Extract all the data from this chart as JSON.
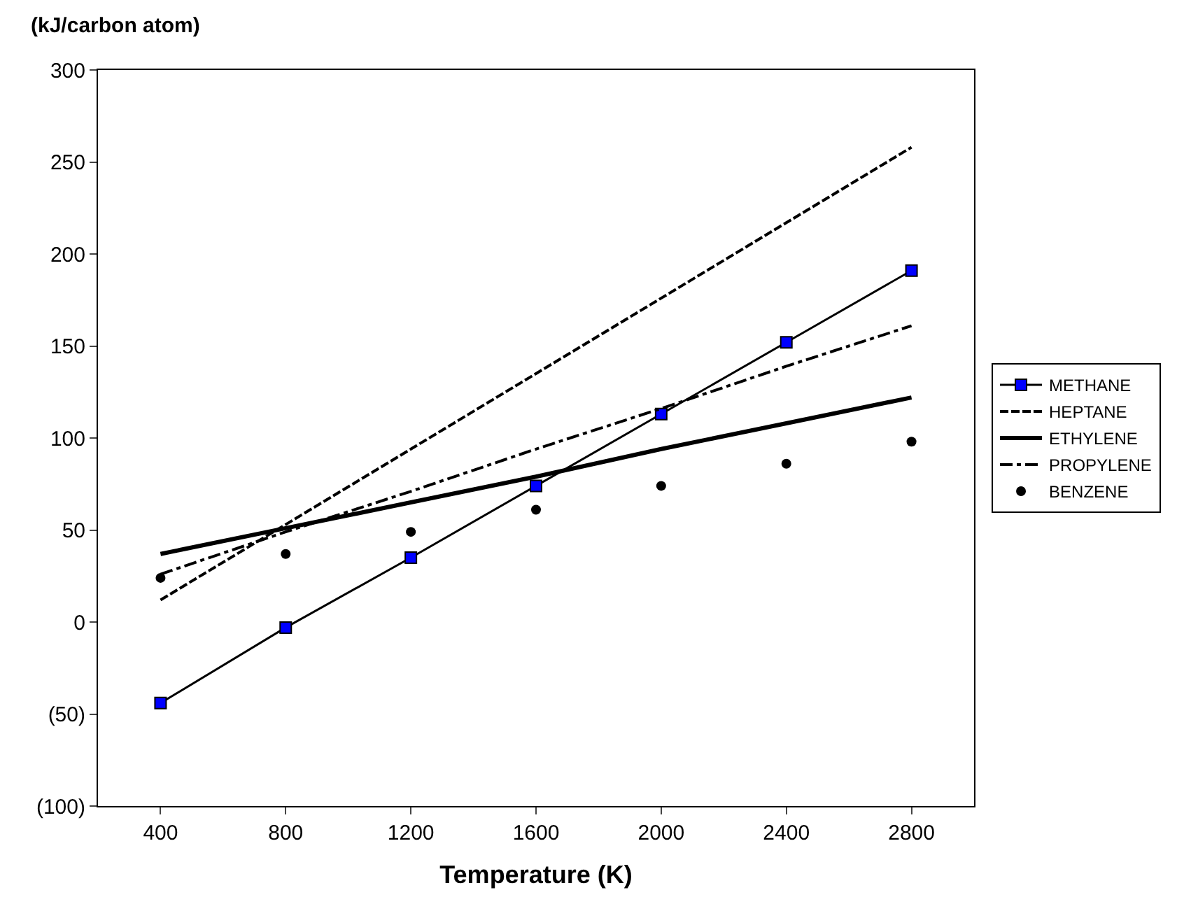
{
  "chart_data": {
    "type": "line",
    "xlabel": "Temperature (K)",
    "ylabel": "(kJ/carbon atom)",
    "x": [
      400,
      800,
      1200,
      1600,
      2000,
      2400,
      2800
    ],
    "xlim": [
      200,
      3000
    ],
    "xticks": [
      400,
      800,
      1200,
      1600,
      2000,
      2400,
      2800
    ],
    "ylim": [
      -100,
      300
    ],
    "yticks": [
      {
        "value": -100,
        "label": "(100)"
      },
      {
        "value": -50,
        "label": "(50)"
      },
      0,
      50,
      100,
      150,
      200,
      250,
      300
    ],
    "legend": "right",
    "series": [
      {
        "name": "METHANE",
        "color": "#0000ff",
        "values": [
          -44,
          -3,
          35,
          74,
          113,
          152,
          191
        ],
        "marker": "square",
        "line_style": "solid"
      },
      {
        "name": "HEPTANE",
        "color": "#000000",
        "values": [
          12,
          53,
          94,
          135,
          176,
          217,
          258
        ],
        "marker": "none",
        "line_style": "dashed"
      },
      {
        "name": "ETHYLENE",
        "color": "#000000",
        "values": [
          37,
          51,
          65,
          79,
          94,
          108,
          122
        ],
        "marker": "none",
        "line_style": "solid"
      },
      {
        "name": "PROPYLENE",
        "color": "#000000",
        "values": [
          26,
          49,
          71,
          94,
          116,
          139,
          161
        ],
        "marker": "none",
        "line_style": "dashdot"
      },
      {
        "name": "BENZENE",
        "color": "#000000",
        "type": "scatter",
        "values": [
          24,
          37,
          49,
          61,
          74,
          86,
          98
        ],
        "marker": "circle"
      }
    ]
  }
}
